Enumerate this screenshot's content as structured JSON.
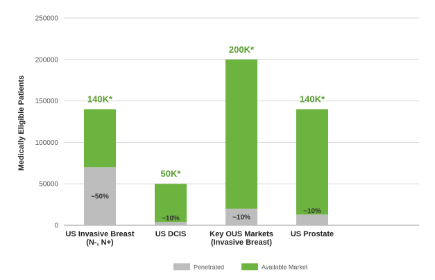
{
  "chart_data": {
    "type": "bar",
    "stacked": true,
    "ylabel": "Medically Eligible Patients",
    "ylim": [
      0,
      250000
    ],
    "yticks": [
      "0",
      "50000",
      "100000",
      "150000",
      "200000",
      "250000"
    ],
    "grid": true,
    "legend_position": "bottom",
    "categories": [
      [
        "US Invasive Breast",
        "(N-, N+)"
      ],
      [
        "US DCIS"
      ],
      [
        "Key OUS Markets",
        "(Invasive Breast)"
      ],
      [
        "US Prostate"
      ]
    ],
    "series": [
      {
        "name": "Penetrated",
        "color": "#bdbdbd",
        "values": [
          70000,
          4000,
          20000,
          13000
        ]
      },
      {
        "name": "Available Market",
        "color": "#6db33f",
        "values": [
          70000,
          46000,
          180000,
          127000
        ]
      }
    ],
    "total_labels": [
      "140K*",
      "50K*",
      "200K*",
      "140K*"
    ],
    "penetration_labels": [
      "~50%",
      "~10%",
      "~10%",
      "~10%"
    ],
    "total_label_color": "#5a9e32"
  }
}
